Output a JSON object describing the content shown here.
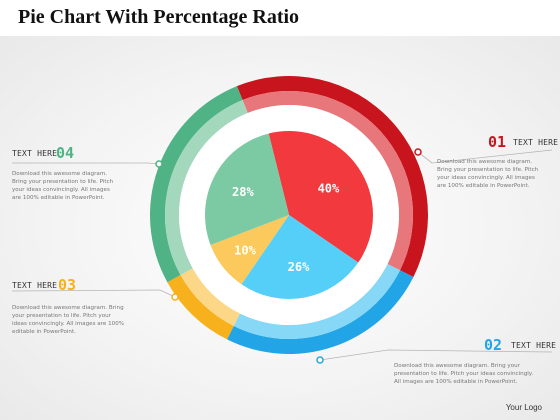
{
  "title": "Pie Chart With Percentage Ratio",
  "logo": "Your Logo",
  "chart_data": {
    "type": "pie",
    "title": "Pie Chart With Percentage Ratio",
    "slices": [
      {
        "label": "40%",
        "value": 40,
        "color": "#f2393e"
      },
      {
        "label": "26%",
        "value": 26,
        "color": "#55cff7"
      },
      {
        "label": "10%",
        "value": 10,
        "color": "#fbc95c"
      },
      {
        "label": "28%",
        "value": 28,
        "color": "#7ccaa4"
      }
    ],
    "outer_ring": [
      {
        "value": 40,
        "color": "#c8141c"
      },
      {
        "value": 26,
        "color": "#22a5e6"
      },
      {
        "value": 10,
        "color": "#f6b11c"
      },
      {
        "value": 28,
        "color": "#4fb386"
      }
    ],
    "middle_ring": [
      {
        "value": 40,
        "color": "#e8777c"
      },
      {
        "value": 26,
        "color": "#87d8f6"
      },
      {
        "value": 10,
        "color": "#fcd788"
      },
      {
        "value": 28,
        "color": "#a3d8bd"
      }
    ]
  },
  "callouts": [
    {
      "id": "01",
      "heading": "TEXT HERE",
      "number": "01",
      "color": "#c8141c",
      "desc": [
        "Download this awesome diagram.",
        "Bring your presentation to life. Pitch",
        "your ideas convincingly. All images",
        "are 100% editable in PowerPoint."
      ]
    },
    {
      "id": "02",
      "heading": "TEXT HERE",
      "number": "02",
      "color": "#22a5e6",
      "desc": [
        "Download this awesome diagram. Bring your",
        "presentation to life. Pitch your ideas convincingly.",
        "All images are 100% editable in PowerPoint."
      ]
    },
    {
      "id": "03",
      "heading": "TEXT HERE",
      "number": "03",
      "color": "#f6b11c",
      "desc": [
        "Download this awesome diagram. Bring",
        "your presentation to life. Pitch your",
        "ideas convincingly. All images are 100%",
        "editable in PowerPoint."
      ]
    },
    {
      "id": "04",
      "heading": "TEXT HERE",
      "number": "04",
      "color": "#4fb386",
      "desc": [
        "Download this awesome diagram.",
        "Bring your presentation to life. Pitch",
        "your ideas convincingly. All images",
        "are 100% editable in PowerPoint."
      ]
    }
  ]
}
